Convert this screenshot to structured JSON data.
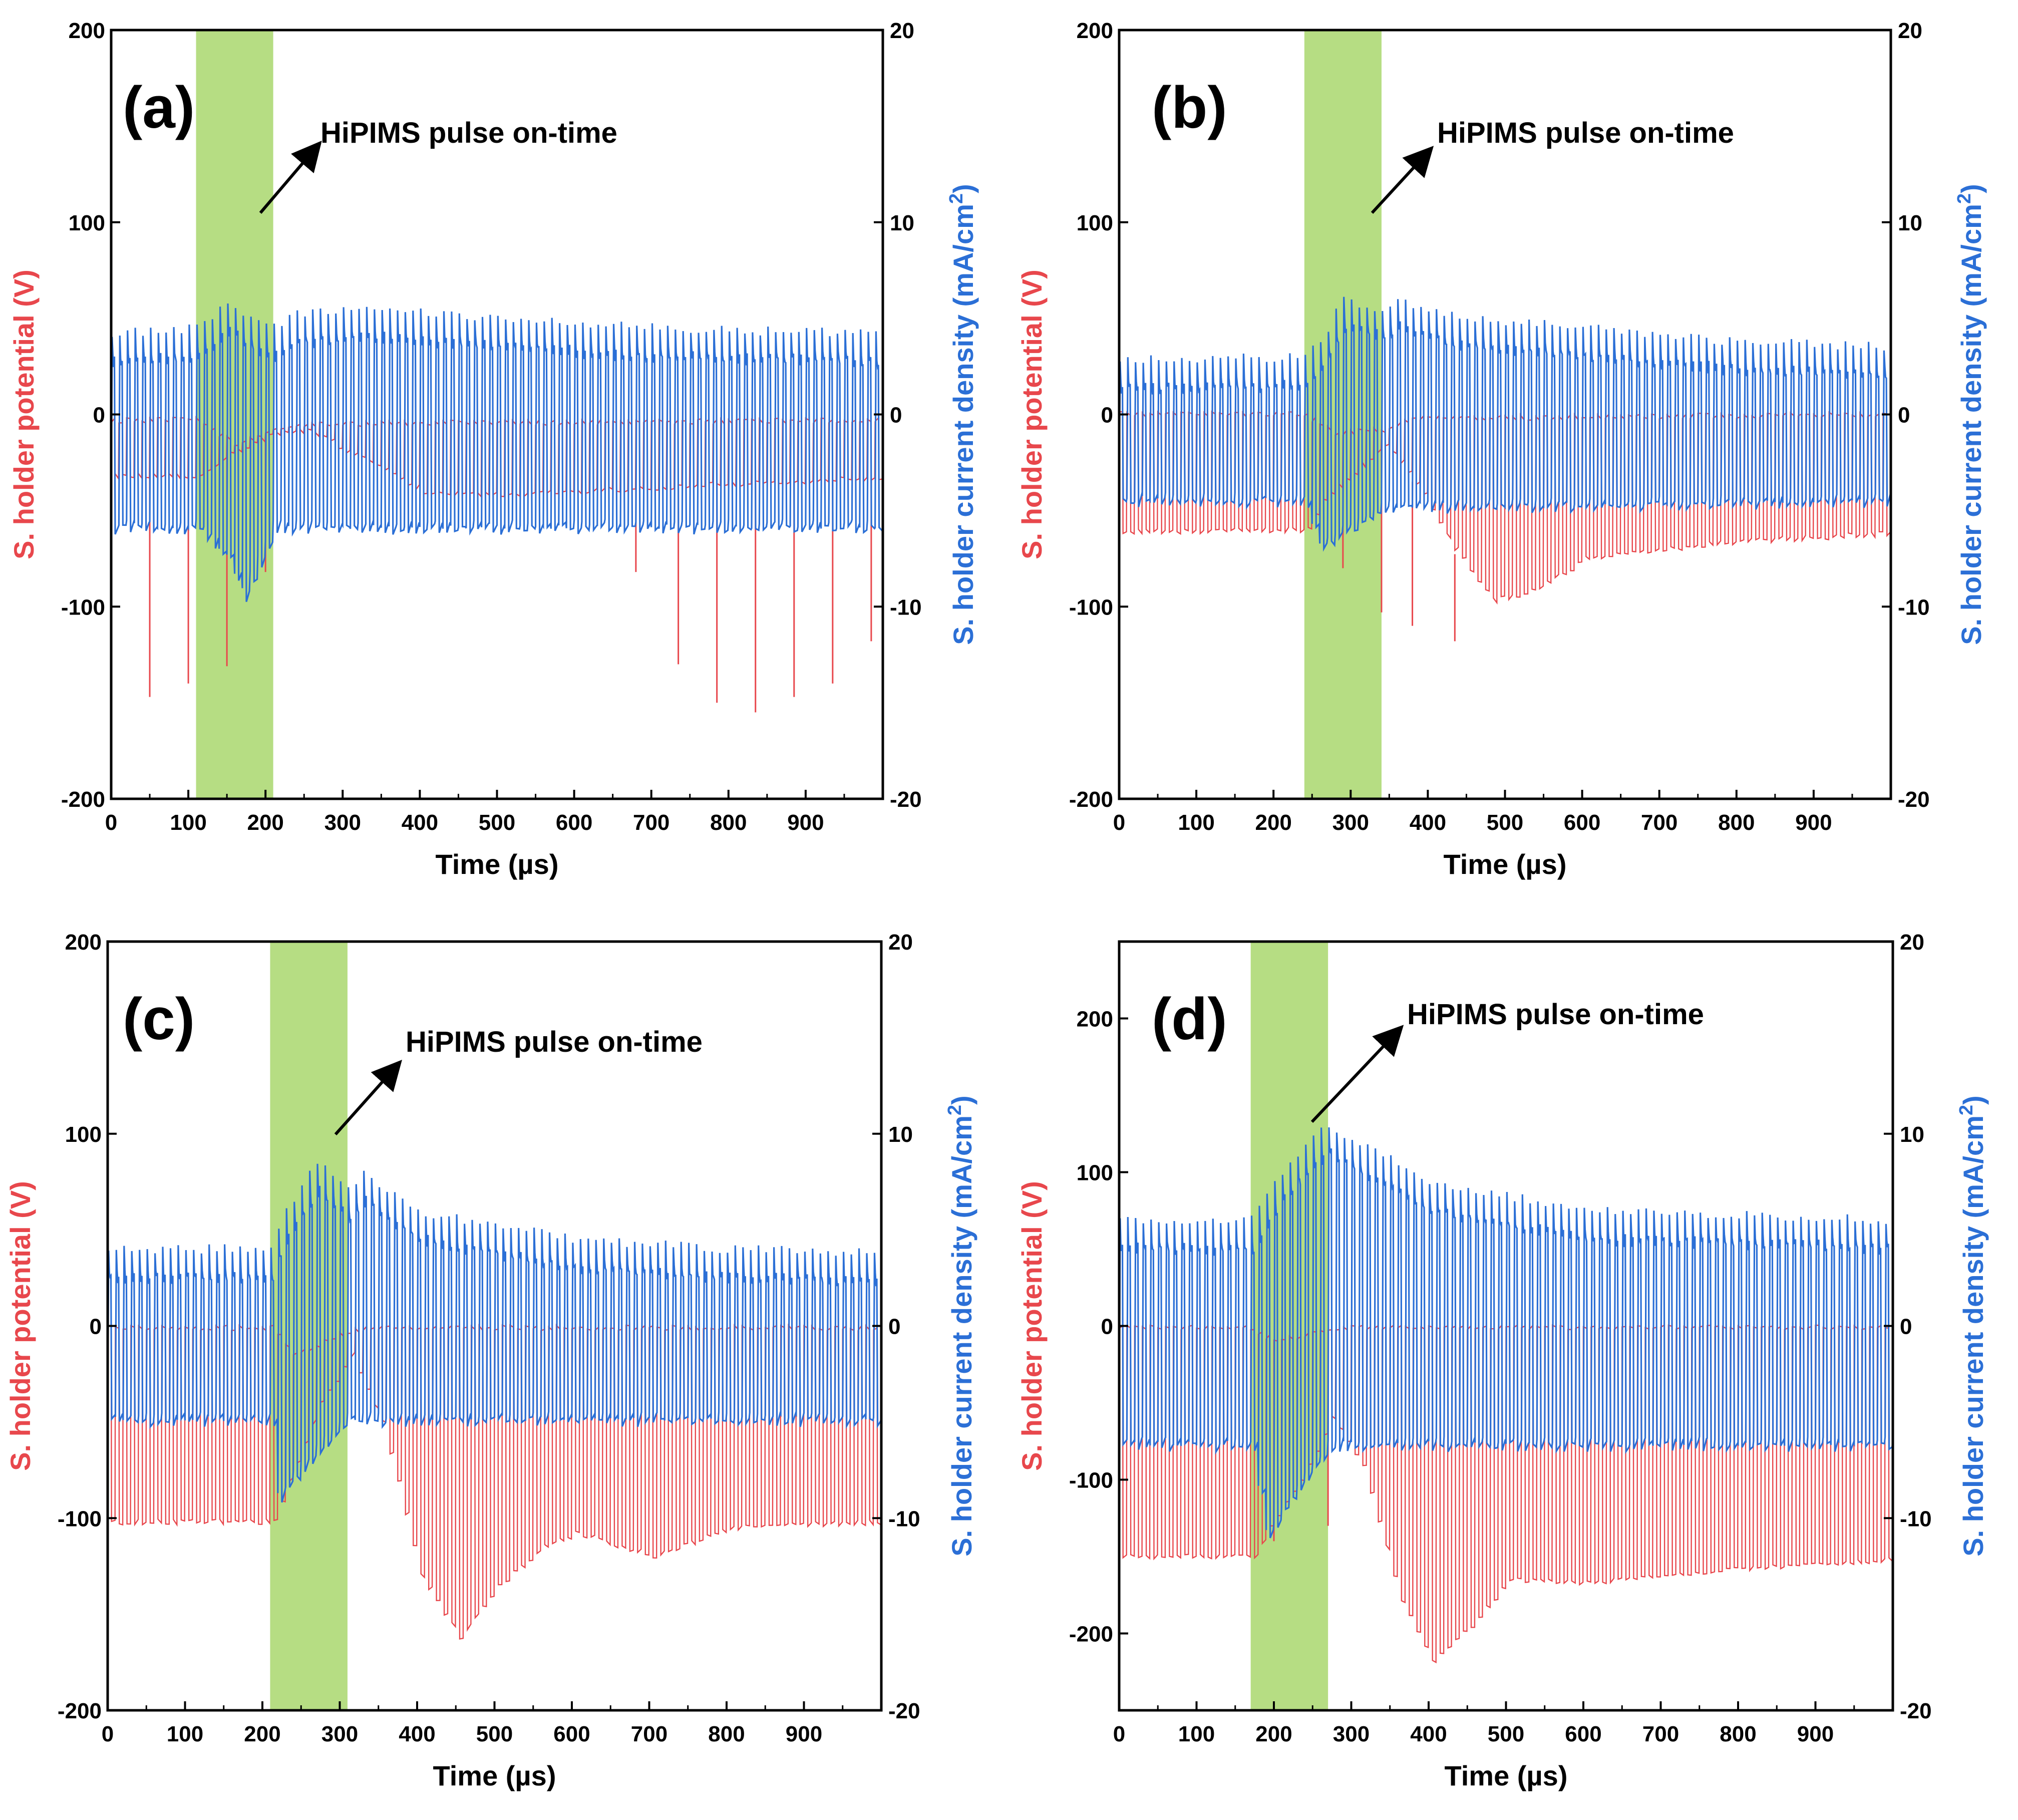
{
  "figure": {
    "panel_count": 4
  },
  "colors": {
    "potential": "#e8474c",
    "current": "#2b6fd6",
    "highlight": "#9ed25a",
    "axis": "#000000"
  },
  "chart_data": [
    {
      "type": "line",
      "panel_label": "(a)",
      "annotation": "HiPIMS pulse on-time",
      "xlabel": "Time (µs)",
      "ylabel_left": "S. holder potential (V)",
      "ylabel_right_prefix": "S. holder current density (mA/cm",
      "ylabel_right_sup": "2",
      "ylabel_right_suffix": ")",
      "xlim": [
        0,
        1000
      ],
      "xticks": [
        0,
        100,
        200,
        300,
        400,
        500,
        600,
        700,
        800,
        900
      ],
      "ylim_left": [
        -200,
        200
      ],
      "yticks_left": [
        -200,
        -100,
        0,
        100,
        200
      ],
      "ylim_right": [
        -20,
        20
      ],
      "yticks_right": [
        -20,
        -10,
        0,
        10,
        20
      ],
      "pulse_on": [
        110,
        210
      ],
      "oscillation_period_us": 10,
      "series": [
        {
          "name": "S. holder potential",
          "axis": "left",
          "baseline_high": [
            [
              0,
              -3
            ],
            [
              110,
              -3
            ],
            [
              160,
              -15
            ],
            [
              210,
              -8
            ],
            [
              240,
              -5
            ],
            [
              1000,
              -3
            ]
          ],
          "baseline_low": [
            [
              0,
              -32
            ],
            [
              110,
              -32
            ],
            [
              150,
              -20
            ],
            [
              210,
              -10
            ],
            [
              250,
              -8
            ],
            [
              330,
              -25
            ],
            [
              400,
              -40
            ],
            [
              500,
              -42
            ],
            [
              700,
              -38
            ],
            [
              1000,
              -33
            ]
          ],
          "spikes": [
            [
              50,
              -147
            ],
            [
              100,
              -140
            ],
            [
              150,
              -131
            ],
            [
              200,
              -82
            ],
            [
              680,
              -82
            ],
            [
              735,
              -130
            ],
            [
              785,
              -150
            ],
            [
              835,
              -155
            ],
            [
              885,
              -147
            ],
            [
              935,
              -140
            ],
            [
              985,
              -118
            ]
          ]
        },
        {
          "name": "S. holder current density",
          "axis": "right",
          "envelope_max": [
            [
              0,
              4.2
            ],
            [
              110,
              4.5
            ],
            [
              130,
              5
            ],
            [
              150,
              5.8
            ],
            [
              180,
              5
            ],
            [
              210,
              4.5
            ],
            [
              240,
              5.2
            ],
            [
              350,
              5.5
            ],
            [
              500,
              5
            ],
            [
              700,
              4.5
            ],
            [
              1000,
              4.2
            ]
          ],
          "envelope_min": [
            [
              0,
              -6
            ],
            [
              110,
              -6
            ],
            [
              150,
              -7.5
            ],
            [
              170,
              -9.5
            ],
            [
              200,
              -7
            ],
            [
              210,
              -6
            ],
            [
              1000,
              -6
            ]
          ]
        }
      ]
    },
    {
      "type": "line",
      "panel_label": "(b)",
      "annotation": "HiPIMS pulse on-time",
      "xlabel": "Time (µs)",
      "ylabel_left": "S. holder potential (V)",
      "ylabel_right_prefix": "S. holder current density (mA/cm",
      "ylabel_right_sup": "2",
      "ylabel_right_suffix": ")",
      "xlim": [
        0,
        1000
      ],
      "xticks": [
        0,
        100,
        200,
        300,
        400,
        500,
        600,
        700,
        800,
        900
      ],
      "ylim_left": [
        -200,
        200
      ],
      "yticks_left": [
        -200,
        -100,
        0,
        100,
        200
      ],
      "ylim_right": [
        -20,
        20
      ],
      "yticks_right": [
        -20,
        -10,
        0,
        10,
        20
      ],
      "pulse_on": [
        240,
        340
      ],
      "oscillation_period_us": 10,
      "series": [
        {
          "name": "S. holder potential",
          "axis": "left",
          "baseline_high": [
            [
              0,
              0
            ],
            [
              240,
              0
            ],
            [
              280,
              -10
            ],
            [
              340,
              -8
            ],
            [
              380,
              -2
            ],
            [
              1000,
              0
            ]
          ],
          "baseline_low": [
            [
              0,
              -61
            ],
            [
              240,
              -60
            ],
            [
              260,
              -45
            ],
            [
              300,
              -30
            ],
            [
              340,
              -15
            ],
            [
              380,
              -35
            ],
            [
              430,
              -70
            ],
            [
              480,
              -97
            ],
            [
              530,
              -92
            ],
            [
              600,
              -75
            ],
            [
              700,
              -70
            ],
            [
              800,
              -66
            ],
            [
              1000,
              -62
            ]
          ],
          "spikes": [
            [
              290,
              -80
            ],
            [
              340,
              -103
            ],
            [
              380,
              -110
            ],
            [
              435,
              -118
            ]
          ]
        },
        {
          "name": "S. holder current density",
          "axis": "right",
          "envelope_max": [
            [
              0,
              2.8
            ],
            [
              240,
              3
            ],
            [
              260,
              3.8
            ],
            [
              290,
              6
            ],
            [
              340,
              5.5
            ],
            [
              360,
              6
            ],
            [
              420,
              5.2
            ],
            [
              600,
              4.5
            ],
            [
              800,
              3.8
            ],
            [
              1000,
              3.5
            ]
          ],
          "envelope_min": [
            [
              0,
              -4.6
            ],
            [
              240,
              -4.6
            ],
            [
              260,
              -7
            ],
            [
              300,
              -6
            ],
            [
              340,
              -5
            ],
            [
              1000,
              -4.6
            ]
          ]
        }
      ]
    },
    {
      "type": "line",
      "panel_label": "(c)",
      "annotation": "HiPIMS pulse on-time",
      "xlabel": "Time (µs)",
      "ylabel_left": "S. holder potential (V)",
      "ylabel_right_prefix": "S. holder current density (mA/cm",
      "ylabel_right_sup": "2",
      "ylabel_right_suffix": ")",
      "xlim": [
        0,
        1000
      ],
      "xticks": [
        0,
        100,
        200,
        300,
        400,
        500,
        600,
        700,
        800,
        900
      ],
      "ylim_left": [
        -200,
        200
      ],
      "yticks_left": [
        -200,
        -100,
        0,
        100,
        200
      ],
      "ylim_right": [
        -20,
        20
      ],
      "yticks_right": [
        -20,
        -10,
        0,
        10,
        20
      ],
      "pulse_on": [
        210,
        310
      ],
      "oscillation_period_us": 10,
      "series": [
        {
          "name": "S. holder potential",
          "axis": "left",
          "baseline_high": [
            [
              0,
              -1
            ],
            [
              210,
              -1
            ],
            [
              240,
              -15
            ],
            [
              310,
              -3
            ],
            [
              340,
              -1
            ],
            [
              1000,
              -1
            ]
          ],
          "baseline_low": [
            [
              0,
              -102
            ],
            [
              210,
              -102
            ],
            [
              230,
              -80
            ],
            [
              270,
              -40
            ],
            [
              310,
              -15
            ],
            [
              350,
              -50
            ],
            [
              400,
              -130
            ],
            [
              450,
              -162
            ],
            [
              500,
              -135
            ],
            [
              560,
              -115
            ],
            [
              600,
              -108
            ],
            [
              700,
              -120
            ],
            [
              800,
              -105
            ],
            [
              1000,
              -102
            ]
          ]
        },
        {
          "name": "S. holder current density",
          "axis": "right",
          "envelope_max": [
            [
              0,
              4
            ],
            [
              210,
              4
            ],
            [
              230,
              6
            ],
            [
              270,
              8.5
            ],
            [
              310,
              7
            ],
            [
              330,
              8
            ],
            [
              400,
              6
            ],
            [
              600,
              4.5
            ],
            [
              800,
              4
            ],
            [
              1000,
              3.8
            ]
          ],
          "envelope_min": [
            [
              0,
              -5
            ],
            [
              210,
              -5
            ],
            [
              220,
              -9
            ],
            [
              260,
              -7
            ],
            [
              310,
              -5
            ],
            [
              1000,
              -5
            ]
          ]
        }
      ]
    },
    {
      "type": "line",
      "panel_label": "(d)",
      "annotation": "HiPIMS pulse on-time",
      "xlabel": "Time (µs)",
      "ylabel_left": "S. holder potential (V)",
      "ylabel_right_prefix": "S. holder current density (mA/cm",
      "ylabel_right_sup": "2",
      "ylabel_right_suffix": ")",
      "xlim": [
        0,
        1000
      ],
      "xticks": [
        0,
        100,
        200,
        300,
        400,
        500,
        600,
        700,
        800,
        900
      ],
      "ylim_left": [
        -250,
        250
      ],
      "yticks_left": [
        -200,
        -100,
        0,
        100,
        200
      ],
      "ylim_right": [
        -20,
        20
      ],
      "yticks_right": [
        -20,
        -10,
        0,
        10,
        20
      ],
      "pulse_on": [
        170,
        270
      ],
      "oscillation_period_us": 10,
      "series": [
        {
          "name": "S. holder potential",
          "axis": "left",
          "baseline_high": [
            [
              0,
              -1
            ],
            [
              170,
              -1
            ],
            [
              200,
              -10
            ],
            [
              270,
              -3
            ],
            [
              300,
              -1
            ],
            [
              1000,
              -1
            ]
          ],
          "baseline_low": [
            [
              0,
              -150
            ],
            [
              170,
              -150
            ],
            [
              190,
              -130
            ],
            [
              230,
              -100
            ],
            [
              270,
              -60
            ],
            [
              310,
              -90
            ],
            [
              360,
              -180
            ],
            [
              400,
              -218
            ],
            [
              450,
              -195
            ],
            [
              500,
              -165
            ],
            [
              600,
              -167
            ],
            [
              800,
              -158
            ],
            [
              1000,
              -152
            ]
          ],
          "spikes": [
            [
              200,
              -140
            ],
            [
              270,
              -130
            ]
          ]
        },
        {
          "name": "S. holder current density",
          "axis": "right",
          "envelope_max": [
            [
              0,
              5.5
            ],
            [
              170,
              5.5
            ],
            [
              200,
              7.5
            ],
            [
              240,
              9.5
            ],
            [
              270,
              10.5
            ],
            [
              290,
              10
            ],
            [
              400,
              7.5
            ],
            [
              600,
              6
            ],
            [
              800,
              5.8
            ],
            [
              1000,
              5.5
            ]
          ],
          "envelope_min": [
            [
              0,
              -6.3
            ],
            [
              170,
              -6.3
            ],
            [
              190,
              -11
            ],
            [
              230,
              -8.5
            ],
            [
              270,
              -6.3
            ],
            [
              1000,
              -6.3
            ]
          ]
        }
      ]
    }
  ]
}
